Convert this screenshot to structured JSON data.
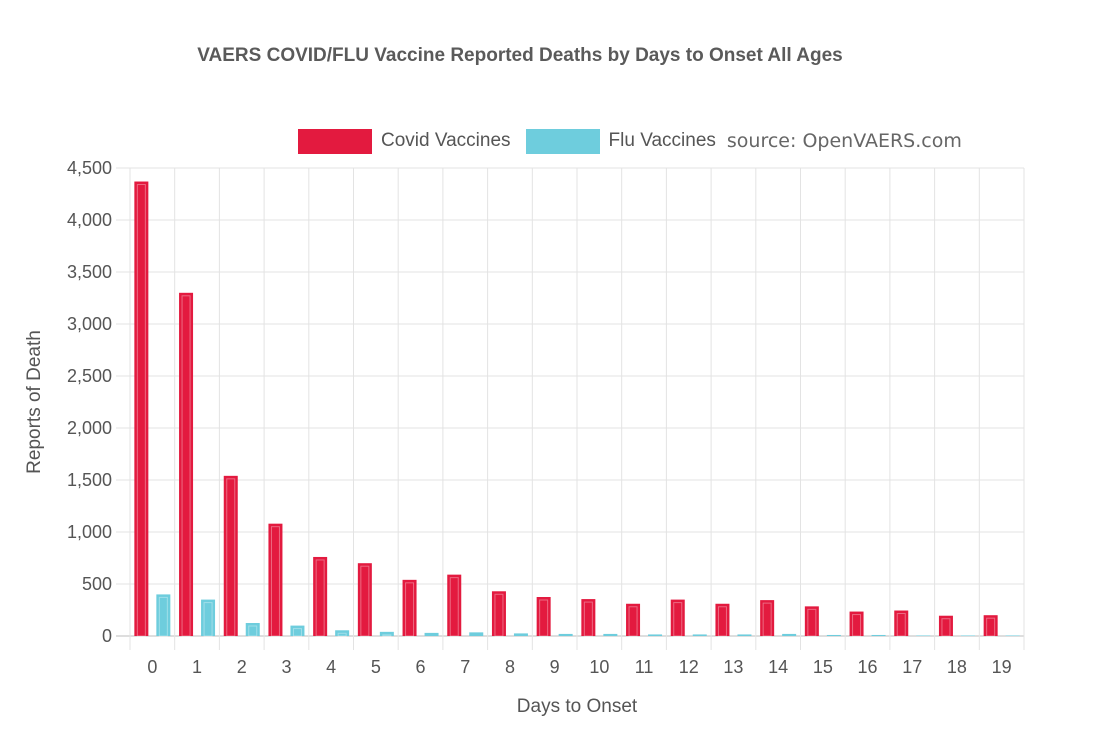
{
  "chart_data": {
    "type": "bar",
    "title": "VAERS COVID/FLU Vaccine Reported Deaths by Days to Onset All Ages",
    "xlabel": "Days to Onset",
    "ylabel": "Reports of Death",
    "ylim": [
      0,
      4500
    ],
    "yticks": [
      0,
      500,
      1000,
      1500,
      2000,
      2500,
      3000,
      3500,
      4000,
      4500
    ],
    "ytick_labels": [
      "0",
      "500",
      "1,000",
      "1,500",
      "2,000",
      "2,500",
      "3,000",
      "3,500",
      "4,000",
      "4,500"
    ],
    "categories": [
      "0",
      "1",
      "2",
      "3",
      "4",
      "5",
      "6",
      "7",
      "8",
      "9",
      "10",
      "11",
      "12",
      "13",
      "14",
      "15",
      "16",
      "17",
      "18",
      "19"
    ],
    "series": [
      {
        "name": "Covid Vaccines",
        "color": "#e31a3f",
        "values": [
          4370,
          3300,
          1540,
          1080,
          760,
          700,
          540,
          590,
          430,
          375,
          355,
          310,
          350,
          310,
          345,
          285,
          235,
          245,
          195,
          200
        ]
      },
      {
        "name": "Flu Vaccines",
        "color": "#6ecddd",
        "values": [
          400,
          350,
          125,
          100,
          55,
          40,
          30,
          35,
          25,
          20,
          20,
          15,
          15,
          15,
          20,
          10,
          10,
          5,
          5,
          5
        ]
      }
    ],
    "grid": true,
    "legend": "top",
    "source_note": "source: OpenVAERS.com"
  }
}
